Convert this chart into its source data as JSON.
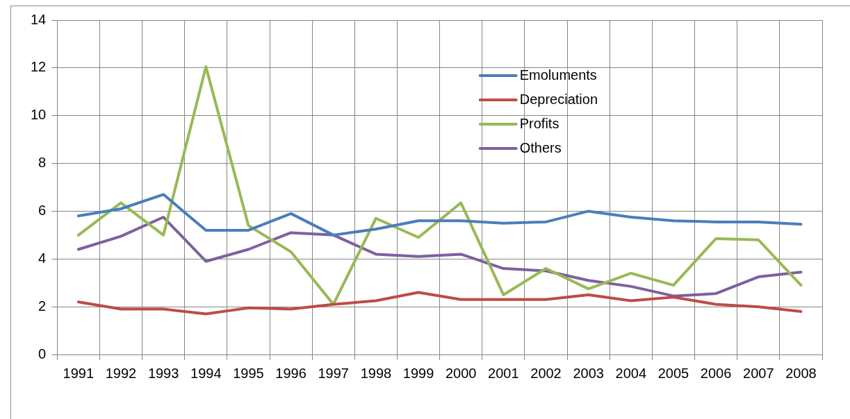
{
  "chart_data": {
    "type": "line",
    "categories": [
      "1991",
      "1992",
      "1993",
      "1994",
      "1995",
      "1996",
      "1997",
      "1998",
      "1999",
      "2000",
      "2001",
      "2002",
      "2003",
      "2004",
      "2005",
      "2006",
      "2007",
      "2008"
    ],
    "series": [
      {
        "name": "Emoluments",
        "color": "#4a7ebb",
        "values": [
          5.8,
          6.1,
          6.7,
          5.2,
          5.2,
          5.9,
          5.0,
          5.25,
          5.6,
          5.6,
          5.5,
          5.55,
          6.0,
          5.75,
          5.6,
          5.55,
          5.55,
          5.45
        ]
      },
      {
        "name": "Depreciation",
        "color": "#be4b48",
        "values": [
          2.2,
          1.9,
          1.9,
          1.7,
          1.95,
          1.9,
          2.1,
          2.25,
          2.6,
          2.3,
          2.3,
          2.3,
          2.5,
          2.25,
          2.4,
          2.1,
          2.0,
          1.8
        ]
      },
      {
        "name": "Profits",
        "color": "#98b954",
        "values": [
          5.0,
          6.35,
          5.0,
          12.05,
          5.4,
          4.3,
          2.1,
          5.7,
          4.9,
          6.35,
          2.5,
          3.6,
          2.75,
          3.4,
          2.9,
          4.85,
          4.8,
          2.9
        ]
      },
      {
        "name": "Others",
        "color": "#7d60a0",
        "values": [
          4.4,
          4.95,
          5.75,
          3.9,
          4.4,
          5.1,
          5.0,
          4.2,
          4.1,
          4.2,
          3.6,
          3.5,
          3.1,
          2.85,
          2.45,
          2.55,
          3.25,
          3.45
        ]
      }
    ],
    "ylim": [
      0,
      14
    ],
    "yticks": [
      0,
      2,
      4,
      6,
      8,
      10,
      12,
      14
    ],
    "grid": true,
    "legend": "top right",
    "marker": "none",
    "line_style": "solid"
  }
}
